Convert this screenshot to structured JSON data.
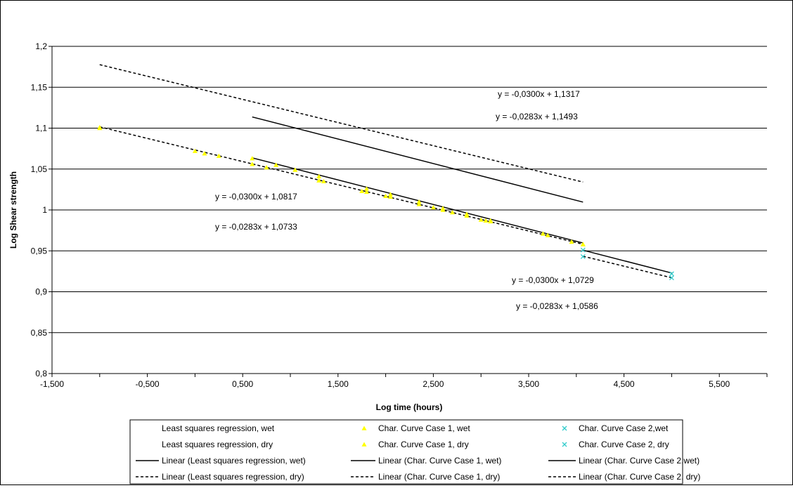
{
  "chart_data": {
    "type": "scatter",
    "xlabel": "Log time (hours)",
    "ylabel": "Log Shear strength",
    "xlim": [
      -1.5,
      6.0
    ],
    "ylim": [
      0.8,
      1.2
    ],
    "x_ticks": [
      "-1,500",
      "-0,500",
      "0,500",
      "1,500",
      "2,500",
      "3,500",
      "4,500",
      "5,500"
    ],
    "x_tick_values": [
      -1.5,
      -0.5,
      0.5,
      1.5,
      2.5,
      3.5,
      4.5,
      5.5
    ],
    "y_ticks": [
      "0,8",
      "0,85",
      "0,9",
      "0,95",
      "1",
      "1,05",
      "1,1",
      "1,15",
      "1,2"
    ],
    "y_tick_values": [
      0.8,
      0.85,
      0.9,
      0.95,
      1.0,
      1.05,
      1.1,
      1.15,
      1.2
    ],
    "grid": "horizontal",
    "legend_position": "bottom",
    "colors": {
      "case1": "#ffff00",
      "case2": "#33cccc",
      "plot_bg": "#ffffff",
      "grid": "#000000"
    },
    "series": [
      {
        "name": "Least squares regression, wet",
        "marker": "none",
        "points": []
      },
      {
        "name": "Least squares regression, dry",
        "marker": "none",
        "points": []
      },
      {
        "name": "Char. Curve Case 1, wet",
        "marker": "triangle",
        "color": "#ffff00",
        "points": [
          [
            -1.0,
            1.1
          ],
          [
            0.6,
            1.063
          ],
          [
            0.85,
            1.055
          ],
          [
            1.05,
            1.049
          ],
          [
            1.3,
            1.041
          ],
          [
            1.8,
            1.026
          ],
          [
            2.05,
            1.019
          ],
          [
            2.35,
            1.01
          ],
          [
            2.6,
            1.002
          ],
          [
            2.85,
            0.995
          ],
          [
            3.1,
            0.987
          ],
          [
            3.65,
            0.971
          ],
          [
            4.07,
            0.958
          ]
        ]
      },
      {
        "name": "Char. Curve Case 1, dry",
        "marker": "triangle",
        "color": "#ffff00",
        "points": [
          [
            -1.0,
            1.101
          ],
          [
            0.0,
            1.072
          ],
          [
            0.1,
            1.069
          ],
          [
            0.25,
            1.066
          ],
          [
            0.6,
            1.056
          ],
          [
            0.75,
            1.052
          ],
          [
            1.3,
            1.036
          ],
          [
            1.35,
            1.035
          ],
          [
            1.75,
            1.023
          ],
          [
            1.8,
            1.022
          ],
          [
            2.0,
            1.017
          ],
          [
            2.05,
            1.016
          ],
          [
            2.35,
            1.007
          ],
          [
            2.5,
            1.003
          ],
          [
            2.6,
            1.0
          ],
          [
            2.7,
            0.997
          ],
          [
            2.85,
            0.993
          ],
          [
            3.0,
            0.988
          ],
          [
            3.05,
            0.987
          ],
          [
            3.1,
            0.986
          ],
          [
            3.7,
            0.969
          ],
          [
            3.95,
            0.961
          ],
          [
            4.07,
            0.958
          ]
        ]
      },
      {
        "name": "Char. Curve Case 2,wet",
        "marker": "x",
        "color": "#33cccc",
        "points": [
          [
            4.07,
            0.951
          ],
          [
            5.0,
            0.922
          ]
        ]
      },
      {
        "name": "Char. Curve Case 2, dry",
        "marker": "x",
        "color": "#33cccc",
        "points": [
          [
            4.07,
            0.943
          ],
          [
            5.0,
            0.917
          ]
        ]
      },
      {
        "name": "Linear (Least squares regression, wet)",
        "line": "solid",
        "slope": -0.03,
        "intercept": 1.1317,
        "x_range": [
          0.6,
          4.07
        ]
      },
      {
        "name": "Linear (Char. Curve Case 1, wet)",
        "line": "solid",
        "slope": -0.03,
        "intercept": 1.0817,
        "x_range": [
          0.6,
          4.07
        ]
      },
      {
        "name": "Linear (Char. Curve Case 2,wet)",
        "line": "solid",
        "slope": -0.03,
        "intercept": 1.0729,
        "x_range": [
          4.07,
          5.0
        ]
      },
      {
        "name": "Linear (Least squares regression, dry)",
        "line": "dashed",
        "slope": -0.0283,
        "intercept": 1.1493,
        "x_range": [
          -1.0,
          4.07
        ]
      },
      {
        "name": "Linear (Char. Curve Case 1, dry)",
        "line": "dashed",
        "slope": -0.0283,
        "intercept": 1.0733,
        "x_range": [
          -1.0,
          4.07
        ]
      },
      {
        "name": "Linear (Char. Curve Case 2, dry)",
        "line": "dashed",
        "slope": -0.0283,
        "intercept": 1.0586,
        "x_range": [
          4.07,
          5.0
        ]
      }
    ],
    "annotations": [
      "y = -0,0300x + 1,1317",
      "y = -0,0283x + 1,1493",
      "y = -0,0300x + 1,0817",
      "y = -0,0283x + 1,0733",
      "y = -0,0300x + 1,0729",
      "y = -0,0283x + 1,0586"
    ]
  }
}
